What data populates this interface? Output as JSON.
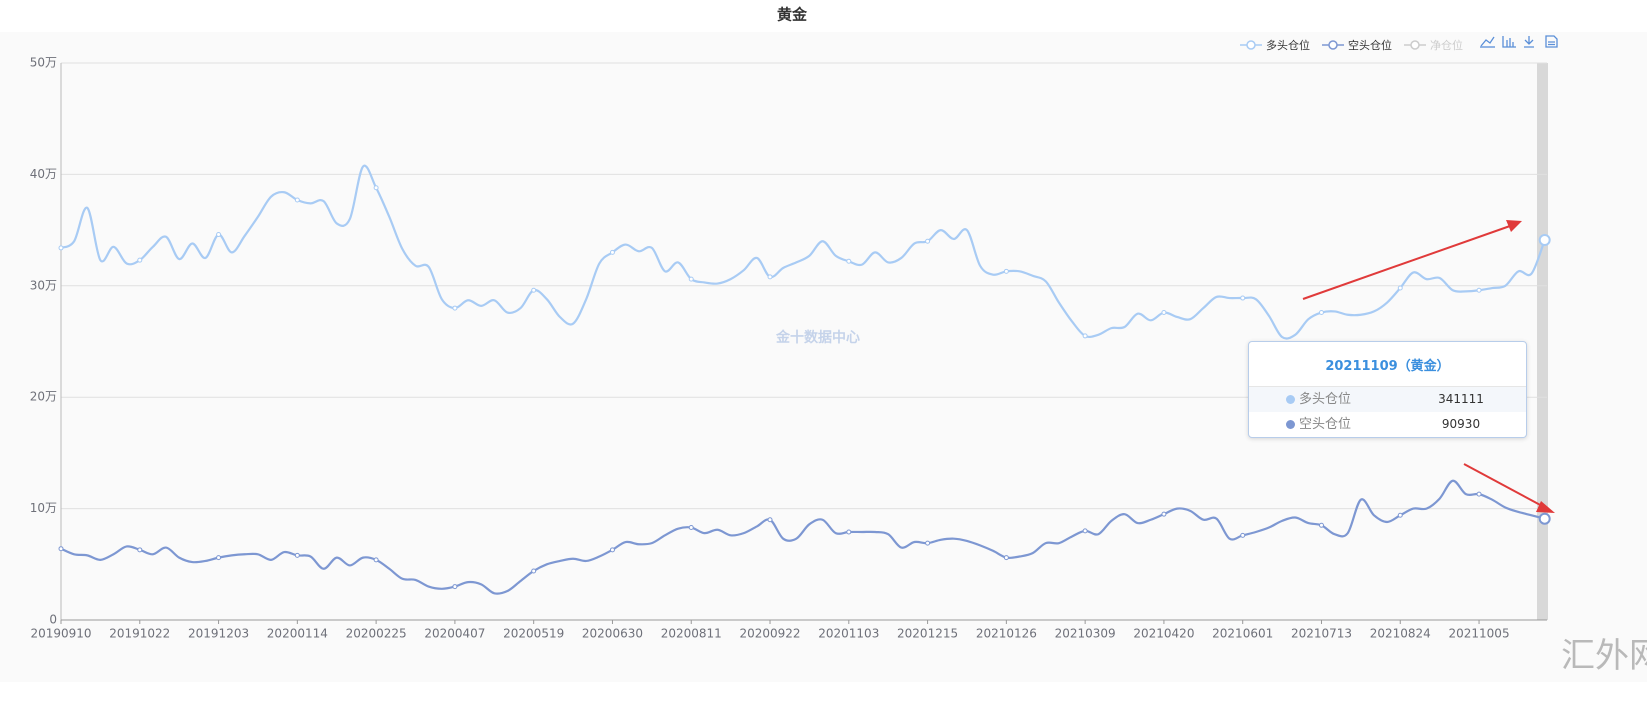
{
  "chart_data": {
    "type": "line",
    "title": "黄金",
    "watermark": "金十数据中心",
    "corner_mark": "汇外网",
    "categories": [
      "20190910",
      null,
      null,
      null,
      null,
      null,
      "20191022",
      null,
      null,
      null,
      null,
      null,
      "20191203",
      null,
      null,
      null,
      null,
      null,
      "20200114",
      null,
      null,
      null,
      null,
      null,
      "20200225",
      null,
      null,
      null,
      null,
      null,
      "20200407",
      null,
      null,
      null,
      null,
      null,
      "20200519",
      null,
      null,
      null,
      null,
      null,
      "20200630",
      null,
      null,
      null,
      null,
      null,
      "20200811",
      null,
      null,
      null,
      null,
      null,
      "20200922",
      null,
      null,
      null,
      null,
      null,
      "20201103",
      null,
      null,
      null,
      null,
      null,
      "20201215",
      null,
      null,
      null,
      null,
      null,
      "20210126",
      null,
      null,
      null,
      null,
      null,
      "20210309",
      null,
      null,
      null,
      null,
      null,
      "20210420",
      null,
      null,
      null,
      null,
      null,
      "20210601",
      null,
      null,
      null,
      null,
      null,
      "20210713",
      null,
      null,
      null,
      null,
      null,
      "20210824",
      null,
      null,
      null,
      null,
      null,
      "20211005",
      null,
      null,
      null,
      null,
      null
    ],
    "series": [
      {
        "name": "多头仓位",
        "color": "#a8cbf4",
        "values": [
          334000,
          340000,
          370000,
          323000,
          335000,
          320000,
          323000,
          335000,
          344000,
          324000,
          338000,
          325000,
          346000,
          330000,
          345000,
          362000,
          380000,
          384000,
          377000,
          374000,
          376000,
          356000,
          360000,
          407000,
          388000,
          362000,
          333000,
          318000,
          317000,
          288000,
          280000,
          287000,
          282000,
          287000,
          276000,
          280000,
          296000,
          288000,
          272000,
          266000,
          288000,
          320000,
          330000,
          337000,
          331000,
          334000,
          313000,
          321000,
          306000,
          303000,
          302000,
          306000,
          314000,
          325000,
          308000,
          316000,
          321000,
          327000,
          340000,
          327000,
          322000,
          319000,
          330000,
          321000,
          325000,
          338000,
          340000,
          350000,
          342000,
          350000,
          318000,
          310000,
          313000,
          313000,
          309000,
          304000,
          285000,
          268000,
          255000,
          256000,
          262000,
          263000,
          275000,
          269000,
          276000,
          272000,
          270000,
          280000,
          290000,
          289000,
          289000,
          288000,
          273000,
          254000,
          256000,
          270000,
          276000,
          277000,
          274000,
          274000,
          277000,
          285000,
          298000,
          312000,
          306000,
          307000,
          296000,
          295000,
          296000,
          298000,
          300000,
          313000,
          311000,
          341111
        ]
      },
      {
        "name": "空头仓位",
        "color": "#7d97d2",
        "values": [
          64000,
          59000,
          58000,
          54000,
          59000,
          66000,
          63000,
          59000,
          65000,
          56000,
          52000,
          53000,
          56000,
          58000,
          59000,
          59000,
          54000,
          61000,
          58000,
          57000,
          46000,
          56000,
          49000,
          56000,
          54000,
          46000,
          37000,
          36000,
          30000,
          28000,
          30000,
          34000,
          32000,
          24000,
          26000,
          35000,
          44000,
          50000,
          53000,
          55000,
          53000,
          57000,
          63000,
          70000,
          68000,
          69000,
          76000,
          82000,
          83000,
          78000,
          81000,
          76000,
          78000,
          84000,
          90000,
          73000,
          73000,
          86000,
          90000,
          78000,
          79000,
          79000,
          79000,
          77000,
          65000,
          70000,
          69000,
          72000,
          73000,
          71000,
          67000,
          62000,
          56000,
          57000,
          60000,
          69000,
          69000,
          75000,
          80000,
          77000,
          89000,
          95000,
          87000,
          90000,
          95000,
          100000,
          98000,
          90000,
          91000,
          73000,
          76000,
          79000,
          83000,
          89000,
          92000,
          87000,
          85000,
          77000,
          78000,
          108000,
          94000,
          88000,
          94000,
          100000,
          100000,
          109000,
          125000,
          113000,
          113000,
          108000,
          101000,
          97000,
          94000,
          90930
        ]
      }
    ],
    "hidden_series": [
      "净仓位"
    ],
    "ylim": [
      0,
      500000
    ],
    "yticks": [
      0,
      {
        "value": 100000,
        "label": "10万"
      },
      {
        "value": 200000,
        "label": "20万"
      },
      {
        "value": 300000,
        "label": "30万"
      },
      {
        "value": 400000,
        "label": "40万"
      },
      {
        "value": 500000,
        "label": "50万"
      }
    ],
    "grid": true,
    "legend": "top-right",
    "tooltip": {
      "title": "20211109（黄金）",
      "index": 113
    }
  }
}
